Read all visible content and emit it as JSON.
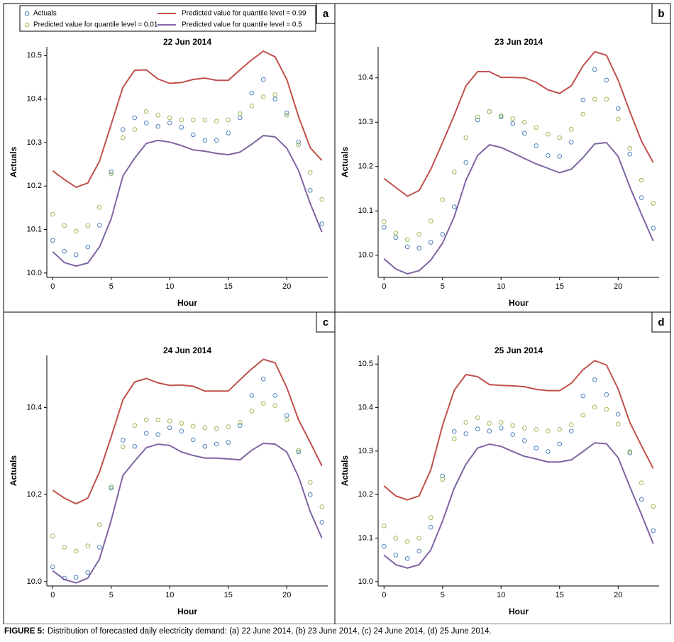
{
  "caption": {
    "label": "FIGURE 5:",
    "text": "Distribution of forecasted daily electricity demand: (a) 22 June 2014, (b) 23 June 2014, (c) 24 June 2014, (d) 25 June 2014."
  },
  "chart_data": [
    {
      "type": "line",
      "panel": "a",
      "title": "22 Jun 2014",
      "x_label": "Hour",
      "y_label": "Actuals",
      "x": [
        0,
        1,
        2,
        3,
        4,
        5,
        6,
        7,
        8,
        9,
        10,
        11,
        12,
        13,
        14,
        15,
        16,
        17,
        18,
        19,
        20,
        21,
        22,
        23
      ],
      "xlim": [
        -0.5,
        23.5
      ],
      "xticks": [
        0,
        5,
        10,
        15,
        20
      ],
      "ylim": [
        9.99,
        10.52
      ],
      "yticks": [
        {
          "value": 10,
          "label": "10.0"
        },
        10.1,
        10.2,
        10.3,
        10.4,
        10.5
      ],
      "series": [
        {
          "name": "Actuals",
          "type": "scatter",
          "color": "#4f81bd",
          "values": [
            10.075,
            10.05,
            10.042,
            10.06,
            10.11,
            10.233,
            10.33,
            10.357,
            10.345,
            10.337,
            10.345,
            10.335,
            10.318,
            10.305,
            10.305,
            10.322,
            10.357,
            10.414,
            10.445,
            10.4,
            10.368,
            10.301,
            10.19,
            10.113
          ]
        },
        {
          "name": "Predicted value for quantile level = 0.01",
          "type": "scatter",
          "color": "#9bbb59",
          "values": [
            10.135,
            10.109,
            10.096,
            10.109,
            10.151,
            10.228,
            10.311,
            10.33,
            10.371,
            10.363,
            10.357,
            10.352,
            10.352,
            10.352,
            10.349,
            10.352,
            10.366,
            10.384,
            10.405,
            10.41,
            10.363,
            10.295,
            10.231,
            10.169
          ]
        },
        {
          "name": "Predicted value for quantile level = 0.99",
          "type": "line",
          "color": "#c0504d",
          "values": [
            10.235,
            10.215,
            10.197,
            10.207,
            10.257,
            10.342,
            10.427,
            10.466,
            10.467,
            10.446,
            10.436,
            10.438,
            10.445,
            10.448,
            10.443,
            10.443,
            10.467,
            10.49,
            10.51,
            10.497,
            10.445,
            10.36,
            10.288,
            10.259
          ]
        },
        {
          "name": "Predicted value for quantile level = 0.5",
          "type": "line",
          "color": "#8064a2",
          "values": [
            10.049,
            10.024,
            10.016,
            10.023,
            10.06,
            10.125,
            10.223,
            10.264,
            10.298,
            10.305,
            10.301,
            10.293,
            10.283,
            10.28,
            10.275,
            10.272,
            10.278,
            10.296,
            10.316,
            10.313,
            10.287,
            10.236,
            10.16,
            10.094
          ]
        }
      ]
    },
    {
      "type": "line",
      "panel": "b",
      "title": "23 Jun 2014",
      "x_label": "Hour",
      "y_label": "Actuals",
      "x": [
        0,
        1,
        2,
        3,
        4,
        5,
        6,
        7,
        8,
        9,
        10,
        11,
        12,
        13,
        14,
        15,
        16,
        17,
        18,
        19,
        20,
        21,
        22,
        23
      ],
      "xlim": [
        -0.5,
        23.5
      ],
      "xticks": [
        0,
        5,
        10,
        15,
        20
      ],
      "ylim": [
        9.95,
        10.47
      ],
      "yticks": [
        {
          "value": 10,
          "label": "10.0"
        },
        10.1,
        10.2,
        10.3,
        10.4
      ],
      "series": [
        {
          "type": "scatter",
          "color": "#4f81bd",
          "values": [
            10.063,
            10.04,
            10.019,
            10.016,
            10.029,
            10.047,
            10.109,
            10.209,
            10.305,
            10.324,
            10.312,
            10.297,
            10.275,
            10.247,
            10.225,
            10.223,
            10.255,
            10.35,
            10.419,
            10.395,
            10.331,
            10.228,
            10.13,
            10.061
          ]
        },
        {
          "type": "scatter",
          "color": "#9bbb59",
          "values": [
            10.076,
            10.05,
            10.035,
            10.047,
            10.077,
            10.125,
            10.188,
            10.265,
            10.312,
            10.324,
            10.315,
            10.308,
            10.3,
            10.288,
            10.273,
            10.265,
            10.284,
            10.318,
            10.352,
            10.352,
            10.307,
            10.241,
            10.169,
            10.117
          ]
        },
        {
          "type": "line",
          "color": "#c0504d",
          "values": [
            10.173,
            10.153,
            10.133,
            10.146,
            10.194,
            10.254,
            10.316,
            10.382,
            10.414,
            10.414,
            10.401,
            10.401,
            10.4,
            10.39,
            10.373,
            10.365,
            10.382,
            10.427,
            10.459,
            10.451,
            10.395,
            10.324,
            10.257,
            10.209
          ]
        },
        {
          "type": "line",
          "color": "#8064a2",
          "values": [
            9.992,
            9.969,
            9.958,
            9.965,
            9.989,
            10.027,
            10.087,
            10.169,
            10.225,
            10.249,
            10.243,
            10.231,
            10.218,
            10.206,
            10.196,
            10.186,
            10.194,
            10.22,
            10.251,
            10.254,
            10.223,
            10.154,
            10.092,
            10.032
          ]
        }
      ]
    },
    {
      "type": "line",
      "panel": "c",
      "title": "24 Jun 2014",
      "x_label": "Hour",
      "y_label": "Actuals",
      "x": [
        0,
        1,
        2,
        3,
        4,
        5,
        6,
        7,
        8,
        9,
        10,
        11,
        12,
        13,
        14,
        15,
        16,
        17,
        18,
        19,
        20,
        21,
        22,
        23
      ],
      "xlim": [
        -0.5,
        23.5
      ],
      "xticks": [
        0,
        5,
        10,
        15,
        20
      ],
      "ylim": [
        9.99,
        10.52
      ],
      "yticks": [
        {
          "value": 10,
          "label": "10.0"
        },
        10.2,
        10.4
      ],
      "series": [
        {
          "type": "scatter",
          "color": "#4f81bd",
          "values": [
            10.034,
            10.008,
            10.01,
            10.021,
            10.079,
            10.215,
            10.325,
            10.311,
            10.341,
            10.338,
            10.354,
            10.346,
            10.326,
            10.311,
            10.316,
            10.32,
            10.359,
            10.428,
            10.466,
            10.428,
            10.382,
            10.298,
            10.2,
            10.136
          ]
        },
        {
          "type": "scatter",
          "color": "#9bbb59",
          "values": [
            10.105,
            10.079,
            10.07,
            10.082,
            10.131,
            10.218,
            10.31,
            10.359,
            10.372,
            10.372,
            10.369,
            10.364,
            10.357,
            10.354,
            10.352,
            10.356,
            10.366,
            10.392,
            10.41,
            10.405,
            10.372,
            10.302,
            10.228,
            10.172
          ]
        },
        {
          "type": "line",
          "color": "#c0504d",
          "values": [
            10.21,
            10.192,
            10.179,
            10.192,
            10.252,
            10.333,
            10.418,
            10.459,
            10.467,
            10.457,
            10.451,
            10.452,
            10.449,
            10.438,
            10.438,
            10.438,
            10.464,
            10.489,
            10.511,
            10.503,
            10.446,
            10.372,
            10.32,
            10.266
          ]
        },
        {
          "type": "line",
          "color": "#8064a2",
          "values": [
            10.025,
            10.005,
            9.997,
            10.008,
            10.052,
            10.141,
            10.244,
            10.277,
            10.308,
            10.316,
            10.313,
            10.298,
            10.29,
            10.284,
            10.284,
            10.282,
            10.28,
            10.302,
            10.318,
            10.316,
            10.298,
            10.241,
            10.161,
            10.1
          ]
        }
      ]
    },
    {
      "type": "line",
      "panel": "d",
      "title": "25 Jun 2014",
      "x_label": "Hour",
      "y_label": "Actuals",
      "x": [
        0,
        1,
        2,
        3,
        4,
        5,
        6,
        7,
        8,
        9,
        10,
        11,
        12,
        13,
        14,
        15,
        16,
        17,
        18,
        19,
        20,
        21,
        22,
        23
      ],
      "xlim": [
        -0.5,
        23.5
      ],
      "xticks": [
        0,
        5,
        10,
        15,
        20
      ],
      "ylim": [
        9.99,
        10.52
      ],
      "yticks": [
        {
          "value": 10,
          "label": "10.0"
        },
        10.1,
        10.2,
        10.3,
        10.4,
        10.5
      ],
      "series": [
        {
          "type": "scatter",
          "color": "#4f81bd",
          "values": [
            10.081,
            10.061,
            10.053,
            10.07,
            10.125,
            10.243,
            10.345,
            10.34,
            10.351,
            10.346,
            10.353,
            10.338,
            10.324,
            10.307,
            10.299,
            10.316,
            10.346,
            10.427,
            10.464,
            10.43,
            10.385,
            10.296,
            10.189,
            10.117
          ]
        },
        {
          "type": "scatter",
          "color": "#9bbb59",
          "values": [
            10.128,
            10.1,
            10.092,
            10.1,
            10.147,
            10.235,
            10.328,
            10.366,
            10.377,
            10.364,
            10.366,
            10.359,
            10.353,
            10.35,
            10.346,
            10.35,
            10.361,
            10.383,
            10.401,
            10.396,
            10.362,
            10.299,
            10.227,
            10.173
          ]
        },
        {
          "type": "line",
          "color": "#c0504d",
          "values": [
            10.22,
            10.197,
            10.188,
            10.197,
            10.257,
            10.359,
            10.44,
            10.476,
            10.471,
            10.453,
            10.451,
            10.45,
            10.448,
            10.442,
            10.439,
            10.439,
            10.456,
            10.487,
            10.508,
            10.498,
            10.443,
            10.366,
            10.312,
            10.26
          ]
        },
        {
          "type": "line",
          "color": "#8064a2",
          "values": [
            10.061,
            10.039,
            10.031,
            10.039,
            10.073,
            10.139,
            10.215,
            10.27,
            10.307,
            10.316,
            10.311,
            10.299,
            10.288,
            10.282,
            10.275,
            10.275,
            10.28,
            10.299,
            10.319,
            10.317,
            10.285,
            10.218,
            10.154,
            10.087
          ]
        }
      ]
    }
  ]
}
